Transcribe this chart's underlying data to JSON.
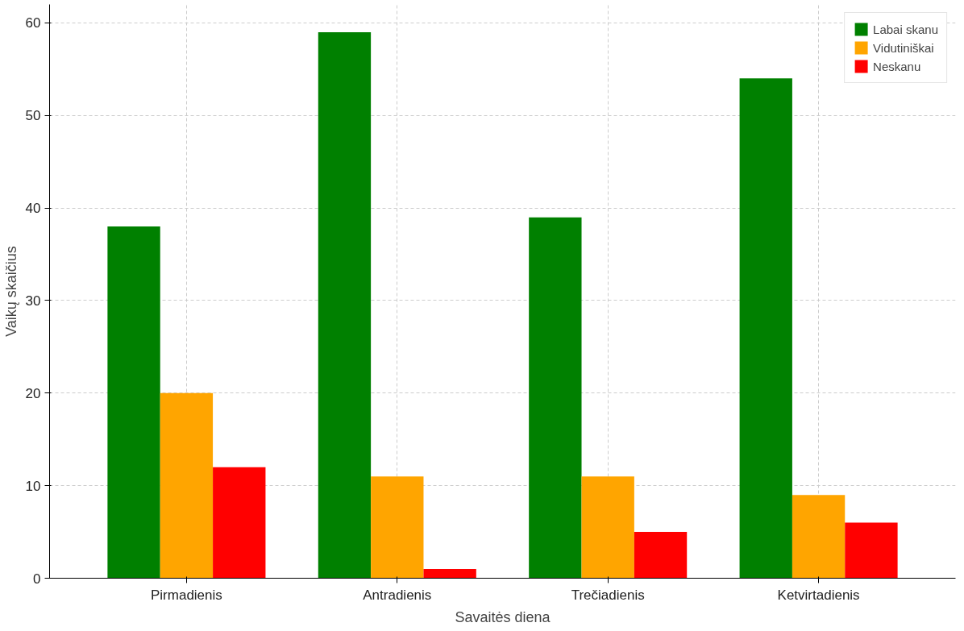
{
  "chart_data": {
    "type": "bar",
    "xlabel": "Savaitės diena",
    "ylabel": "Vaikų skaičius",
    "categories": [
      "Pirmadienis",
      "Antradienis",
      "Trečiadienis",
      "Ketvirtadienis"
    ],
    "series": [
      {
        "name": "Labai skanu",
        "color": "#008000",
        "values": [
          38,
          59,
          39,
          54
        ]
      },
      {
        "name": "Vidutiniškai",
        "color": "#ffa500",
        "values": [
          20,
          11,
          11,
          9
        ]
      },
      {
        "name": "Neskanu",
        "color": "#ff0000",
        "values": [
          12,
          1,
          5,
          6
        ]
      }
    ],
    "ylim": [
      0,
      62
    ],
    "yticks": [
      0,
      10,
      20,
      30,
      40,
      50,
      60
    ],
    "grid": true,
    "legend": "top right"
  }
}
